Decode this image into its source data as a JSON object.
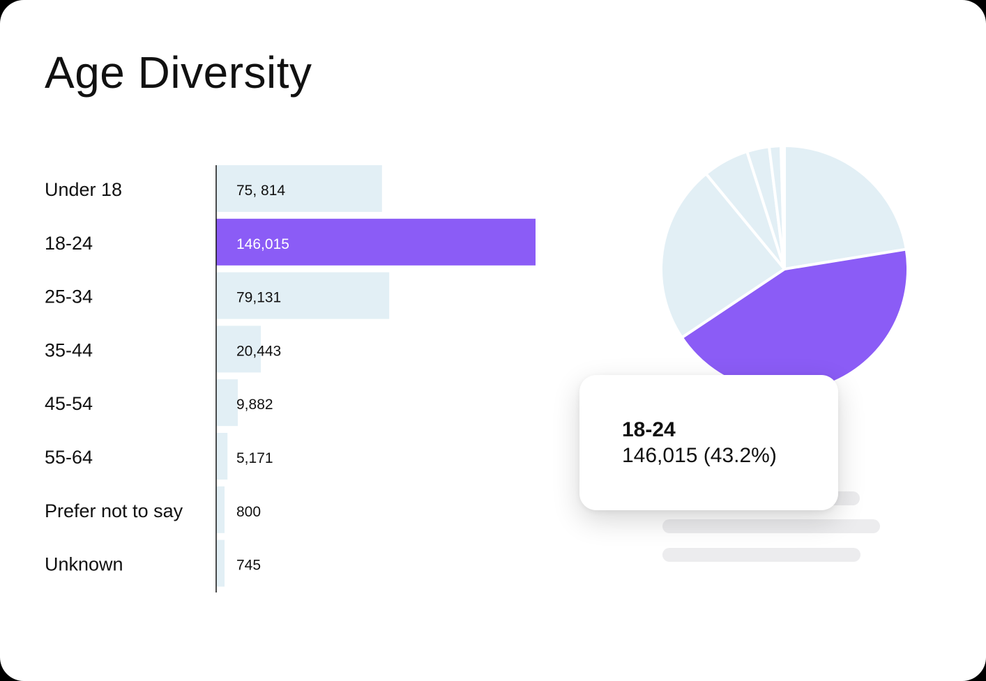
{
  "title": "Age Diversity",
  "colors": {
    "bar": "#e2eff5",
    "highlight": "#8b5cf6",
    "axis": "#111111",
    "slice_border": "#ffffff"
  },
  "chart_data": {
    "type": "bar",
    "orientation": "horizontal",
    "categories": [
      "Under 18",
      "18-24",
      "25-34",
      "35-44",
      "45-54",
      "55-64",
      "Prefer not to say",
      "Unknown"
    ],
    "values": [
      75814,
      146015,
      79131,
      20443,
      9882,
      5171,
      800,
      745
    ],
    "value_labels": [
      "75, 814",
      "146,015",
      "79,131",
      "20,443",
      "9,882",
      "5,171",
      "800",
      "745"
    ],
    "highlight_index": 1,
    "grid": false
  },
  "pie_chart_data": {
    "type": "pie",
    "categories": [
      "Under 18",
      "18-24",
      "25-34",
      "35-44",
      "45-54",
      "55-64",
      "Prefer not to say",
      "Unknown"
    ],
    "values": [
      75814,
      146015,
      79131,
      20443,
      9882,
      5171,
      800,
      745
    ],
    "highlight_index": 1
  },
  "tooltip": {
    "label": "18-24",
    "value": "146,015 (43.2%)"
  }
}
